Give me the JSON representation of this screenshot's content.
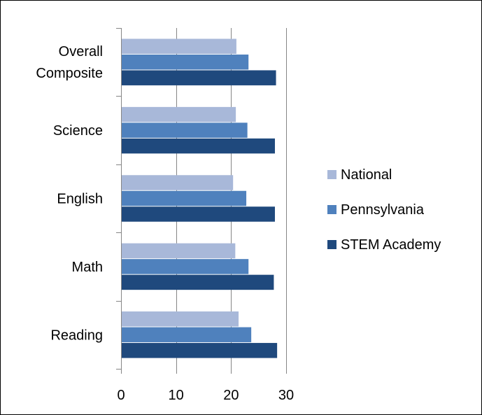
{
  "chart_data": {
    "type": "bar",
    "orientation": "horizontal",
    "categories": [
      "Overall\nComposite",
      "Science",
      "English",
      "Math",
      "Reading"
    ],
    "series": [
      {
        "name": "National",
        "color": "#a8b8d9",
        "values": [
          20.9,
          20.8,
          20.3,
          20.7,
          21.3
        ]
      },
      {
        "name": "Pennsylvania",
        "color": "#4f81bd",
        "values": [
          23.1,
          22.9,
          22.7,
          23.1,
          23.6
        ]
      },
      {
        "name": "STEM Academy",
        "color": "#1f497d",
        "values": [
          28.1,
          27.9,
          27.9,
          27.7,
          28.3
        ]
      }
    ],
    "xlim": [
      0,
      30
    ],
    "xticks": [
      0,
      10,
      20,
      30
    ],
    "grid": true,
    "legend_position": "right",
    "title": "",
    "xlabel": "",
    "ylabel": ""
  }
}
